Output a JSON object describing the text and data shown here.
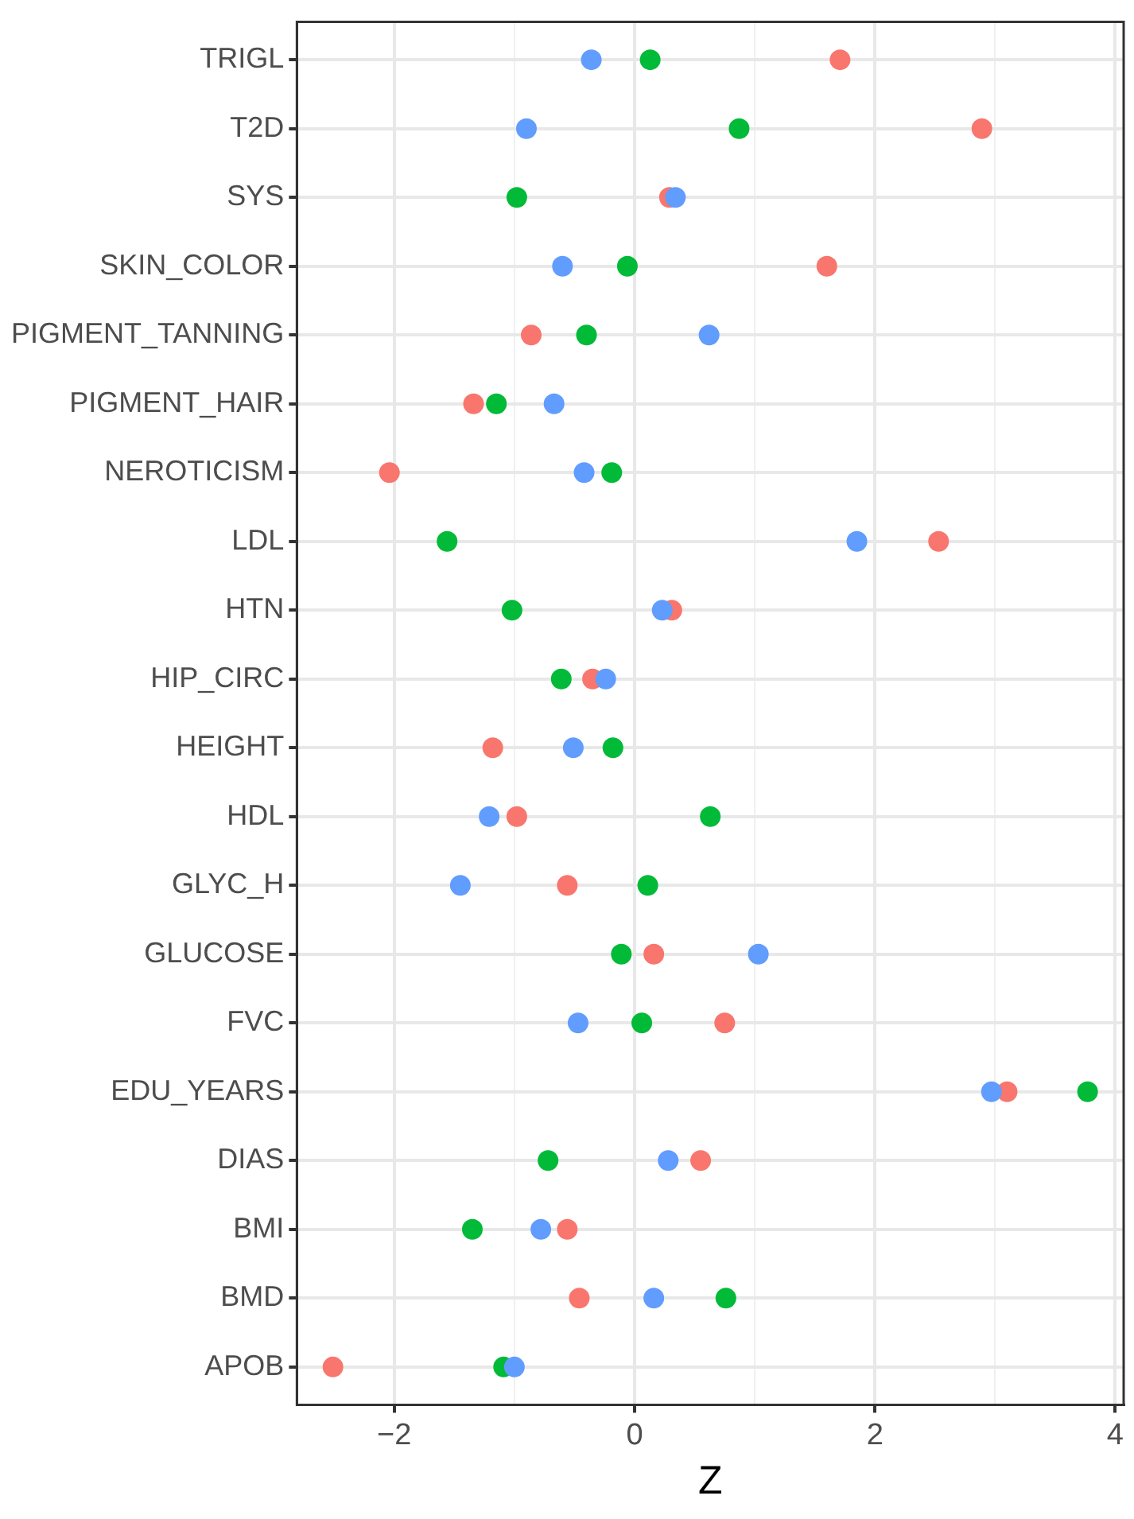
{
  "chart_data": {
    "type": "scatter",
    "xlabel": "Z",
    "categories": [
      "TRIGL",
      "T2D",
      "SYS",
      "SKIN_COLOR",
      "PIGMENT_TANNING",
      "PIGMENT_HAIR",
      "NEROTICISM",
      "LDL",
      "HTN",
      "HIP_CIRC",
      "HEIGHT",
      "HDL",
      "GLYC_H",
      "GLUCOSE",
      "FVC",
      "EDU_YEARS",
      "DIAS",
      "BMI",
      "BMD",
      "APOB"
    ],
    "series": [
      {
        "color": "#f8766d",
        "values": [
          1.71,
          2.89,
          0.29,
          1.6,
          -0.86,
          -1.34,
          -2.04,
          2.53,
          0.31,
          -0.35,
          -1.18,
          -0.98,
          -0.56,
          0.16,
          0.75,
          3.1,
          0.55,
          -0.56,
          -0.46,
          -2.51
        ]
      },
      {
        "color": "#00ba38",
        "values": [
          0.13,
          0.87,
          -0.98,
          -0.06,
          -0.4,
          -1.15,
          -0.19,
          -1.56,
          -1.02,
          -0.61,
          -0.18,
          0.63,
          0.11,
          -0.11,
          0.06,
          3.77,
          -0.72,
          -1.35,
          0.76,
          -1.09
        ]
      },
      {
        "color": "#619cff",
        "values": [
          -0.36,
          -0.9,
          0.34,
          -0.6,
          0.62,
          -0.67,
          -0.42,
          1.85,
          0.23,
          -0.24,
          -0.51,
          -1.21,
          -1.45,
          1.03,
          -0.47,
          2.97,
          0.28,
          -0.78,
          0.16,
          -1.0
        ]
      }
    ],
    "orientation": "horizontal",
    "xlim": [
      -2.81,
      4.07
    ],
    "xticks": [
      {
        "value": -2,
        "label": "−2"
      },
      {
        "value": -1,
        "label": null
      },
      0,
      {
        "value": 1,
        "label": null
      },
      2,
      {
        "value": 3,
        "label": null
      },
      4
    ],
    "grid": true,
    "marker": "circle",
    "legend": false
  }
}
